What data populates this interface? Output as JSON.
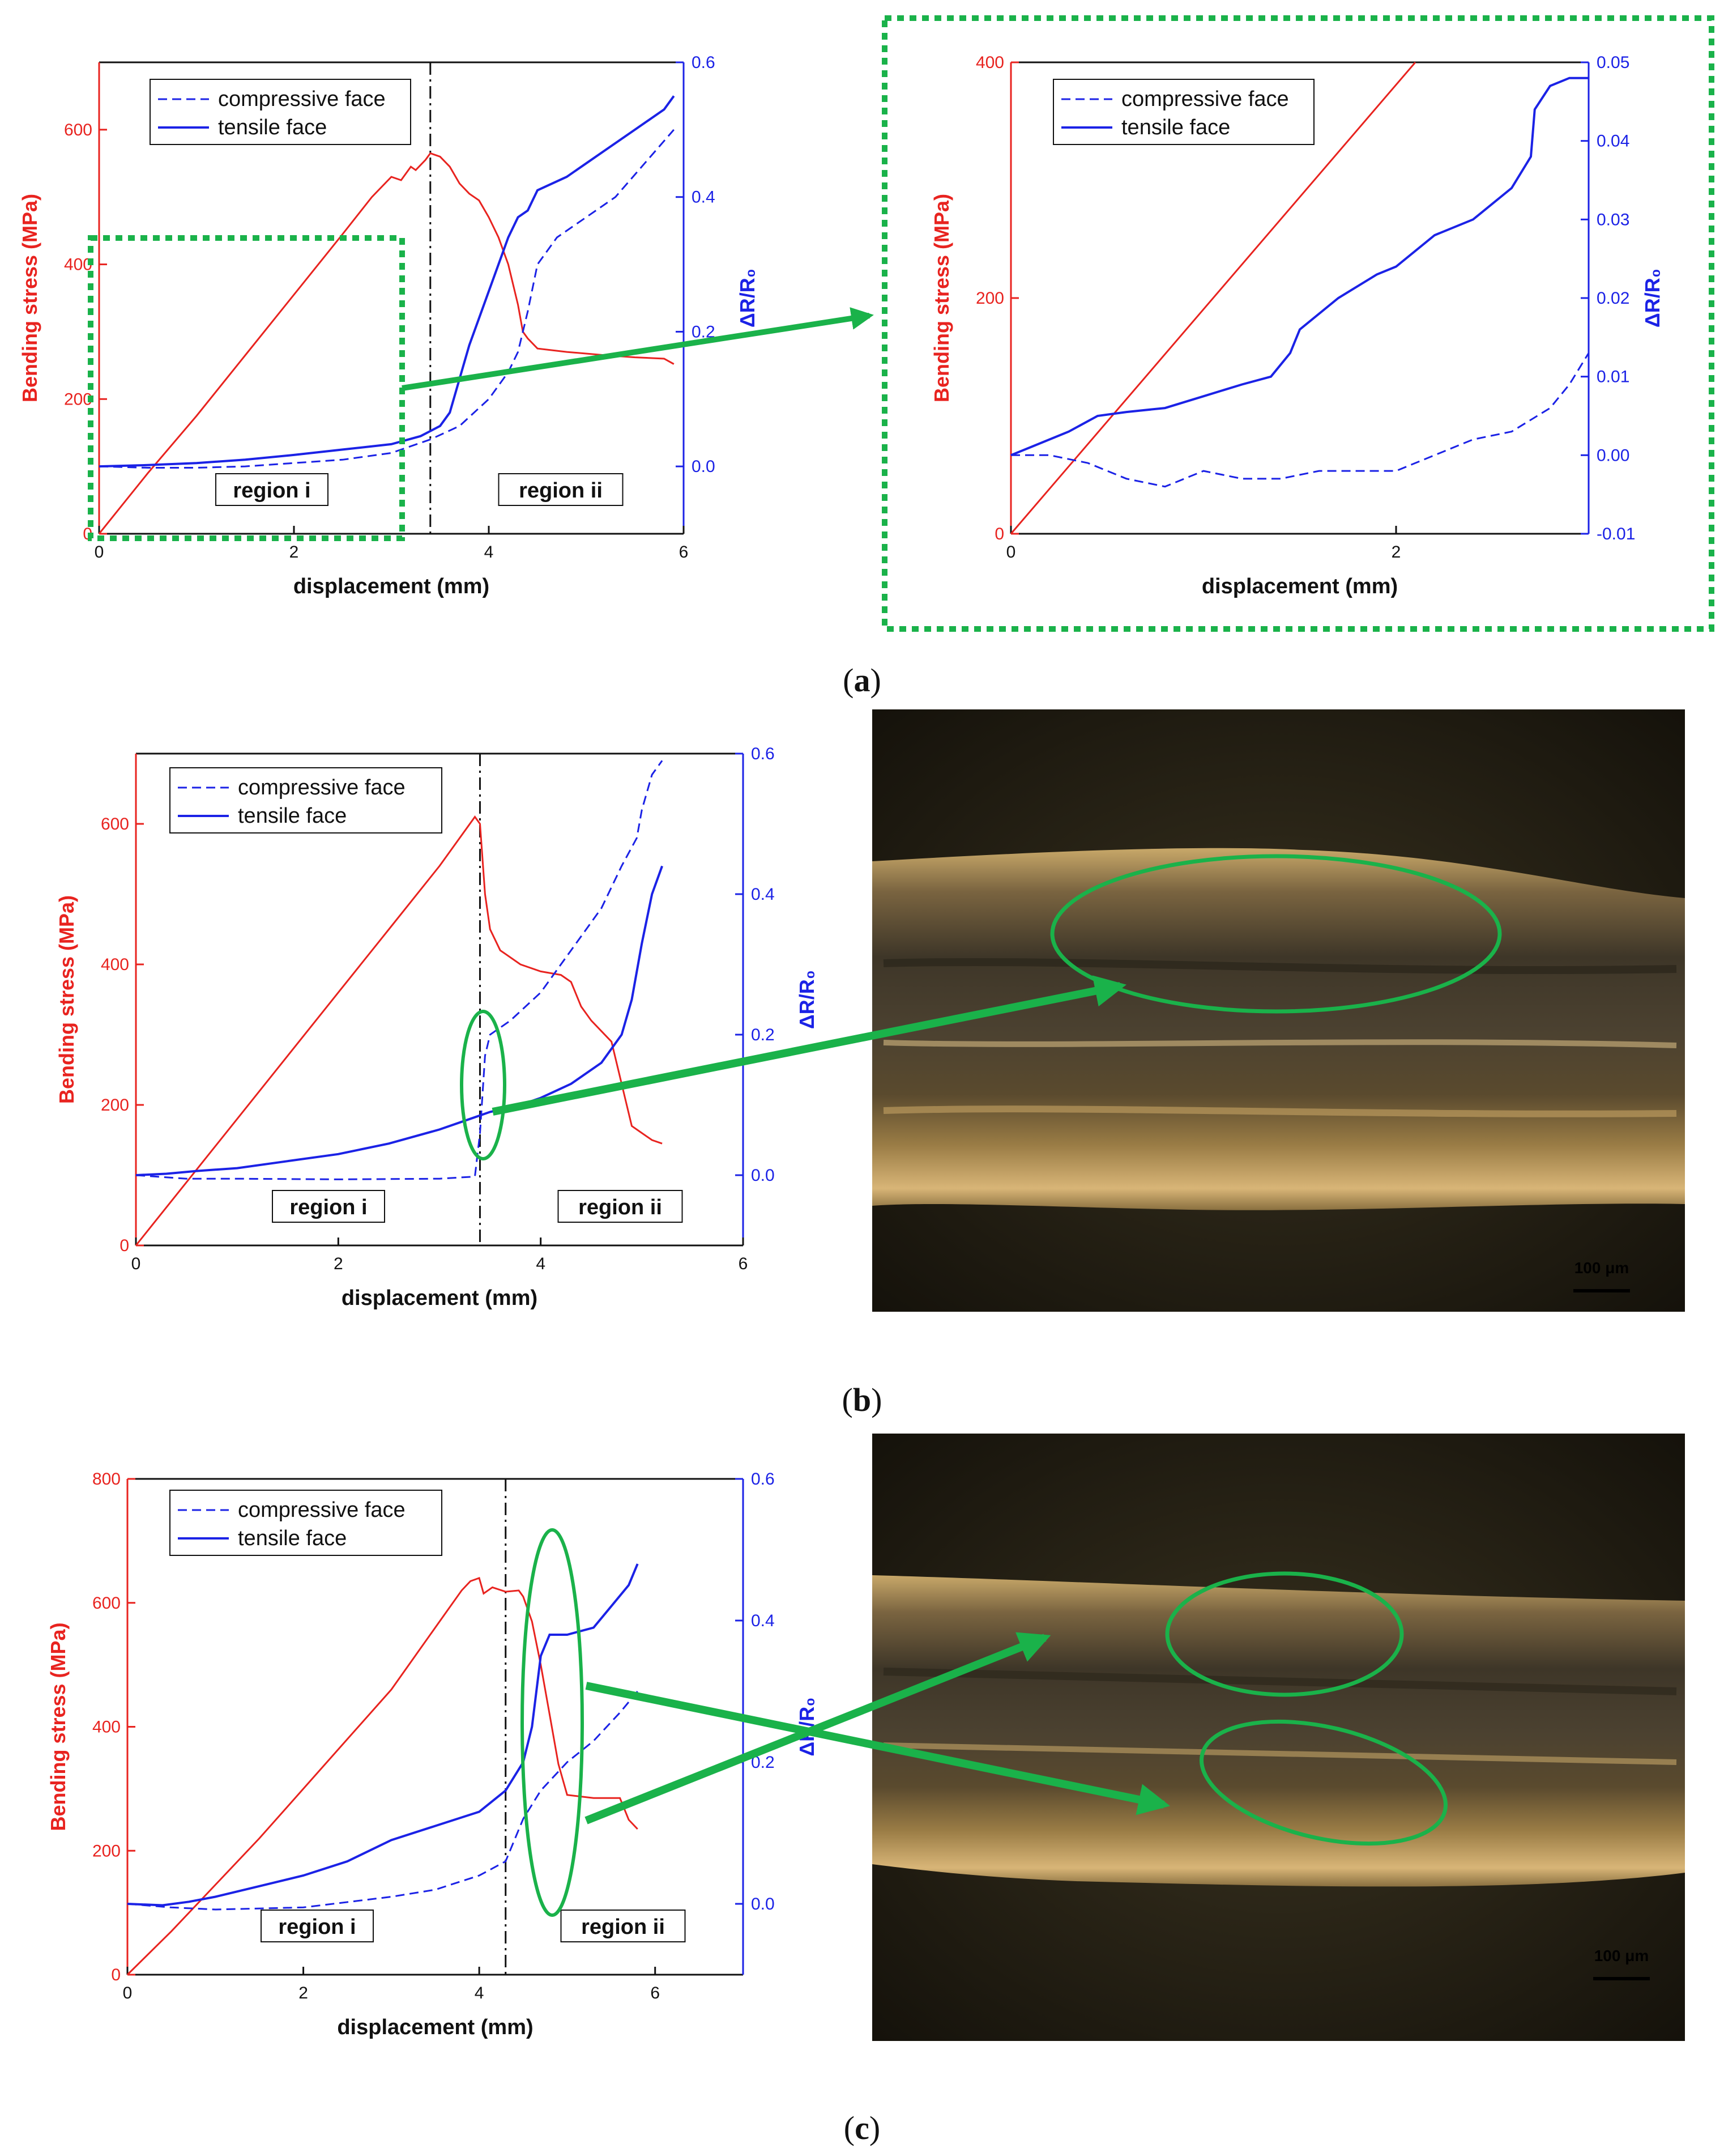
{
  "colors": {
    "stress": "#e8231f",
    "resistance": "#1b22e6",
    "highlight": "#1ab24a",
    "axis": "#111111"
  },
  "panels": [
    {
      "caption_prefix": "(",
      "caption_letter": "a",
      "caption_suffix": ")"
    },
    {
      "caption_prefix": "(",
      "caption_letter": "b",
      "caption_suffix": ")"
    },
    {
      "caption_prefix": "(",
      "caption_letter": "c",
      "caption_suffix": ")"
    }
  ],
  "micrographs": [
    {
      "scale_label": "100 μm"
    },
    {
      "scale_label": "100 μm"
    }
  ],
  "chart_data": [
    {
      "id": "a-main",
      "type": "line",
      "xlabel": "displacement (mm)",
      "ylabel_left": "Bending stress (MPa)",
      "ylabel_right": "ΔR/R₀",
      "xlim": [
        0,
        6
      ],
      "xticks": [
        0,
        2,
        4,
        6
      ],
      "ylim_left": [
        0,
        700
      ],
      "yticks_left": [
        0,
        200,
        400,
        600
      ],
      "ylim_right": [
        -0.1,
        0.6
      ],
      "yticks_right": [
        "0.0",
        "0.2",
        "0.4",
        "0.6"
      ],
      "yticks_right_values": [
        0,
        0.2,
        0.4,
        0.6
      ],
      "legend": {
        "position": "top-left",
        "entries": [
          "compressive face",
          "tensile face"
        ]
      },
      "regions": [
        "region i",
        "region ii"
      ],
      "divider_x": 3.4,
      "stress": [
        [
          0,
          0
        ],
        [
          0.5,
          90
        ],
        [
          1,
          175
        ],
        [
          1.5,
          265
        ],
        [
          2,
          355
        ],
        [
          2.5,
          445
        ],
        [
          2.8,
          500
        ],
        [
          3.0,
          530
        ],
        [
          3.1,
          525
        ],
        [
          3.2,
          545
        ],
        [
          3.25,
          540
        ],
        [
          3.35,
          555
        ],
        [
          3.4,
          565
        ],
        [
          3.5,
          560
        ],
        [
          3.6,
          545
        ],
        [
          3.7,
          520
        ],
        [
          3.8,
          505
        ],
        [
          3.9,
          495
        ],
        [
          4.0,
          470
        ],
        [
          4.1,
          440
        ],
        [
          4.2,
          400
        ],
        [
          4.3,
          340
        ],
        [
          4.35,
          300
        ],
        [
          4.4,
          290
        ],
        [
          4.5,
          275
        ],
        [
          4.8,
          270
        ],
        [
          5.2,
          265
        ],
        [
          5.5,
          262
        ],
        [
          5.8,
          260
        ],
        [
          5.9,
          252
        ]
      ],
      "tensile": [
        [
          0,
          0
        ],
        [
          0.5,
          0.002
        ],
        [
          1,
          0.005
        ],
        [
          1.5,
          0.01
        ],
        [
          2,
          0.017
        ],
        [
          2.5,
          0.025
        ],
        [
          3,
          0.033
        ],
        [
          3.3,
          0.045
        ],
        [
          3.5,
          0.06
        ],
        [
          3.6,
          0.08
        ],
        [
          3.7,
          0.13
        ],
        [
          3.8,
          0.18
        ],
        [
          3.9,
          0.22
        ],
        [
          4.0,
          0.26
        ],
        [
          4.1,
          0.3
        ],
        [
          4.2,
          0.34
        ],
        [
          4.3,
          0.37
        ],
        [
          4.4,
          0.38
        ],
        [
          4.5,
          0.41
        ],
        [
          4.8,
          0.43
        ],
        [
          5.0,
          0.45
        ],
        [
          5.2,
          0.47
        ],
        [
          5.5,
          0.5
        ],
        [
          5.8,
          0.53
        ],
        [
          5.9,
          0.55
        ]
      ],
      "compressive": [
        [
          0,
          0
        ],
        [
          0.5,
          -0.002
        ],
        [
          1,
          -0.002
        ],
        [
          1.5,
          0
        ],
        [
          2,
          0.005
        ],
        [
          2.5,
          0.01
        ],
        [
          3,
          0.02
        ],
        [
          3.4,
          0.04
        ],
        [
          3.7,
          0.06
        ],
        [
          4.0,
          0.1
        ],
        [
          4.2,
          0.14
        ],
        [
          4.3,
          0.17
        ],
        [
          4.4,
          0.23
        ],
        [
          4.5,
          0.3
        ],
        [
          4.7,
          0.34
        ],
        [
          5.0,
          0.37
        ],
        [
          5.3,
          0.4
        ],
        [
          5.6,
          0.45
        ],
        [
          5.9,
          0.5
        ]
      ]
    },
    {
      "id": "a-zoom",
      "type": "line",
      "xlabel": "displacement (mm)",
      "ylabel_left": "Bending stress (MPa)",
      "ylabel_right": "ΔR/R₀",
      "xlim": [
        0,
        3
      ],
      "xticks": [
        0,
        2
      ],
      "ylim_left": [
        0,
        400
      ],
      "yticks_left": [
        0,
        200,
        400
      ],
      "ylim_right": [
        -0.01,
        0.05
      ],
      "yticks_right": [
        "-0.01",
        "0.00",
        "0.01",
        "0.02",
        "0.03",
        "0.04",
        "0.05"
      ],
      "yticks_right_values": [
        -0.01,
        0,
        0.01,
        0.02,
        0.03,
        0.04,
        0.05
      ],
      "legend": {
        "position": "top-left",
        "entries": [
          "compressive face",
          "tensile face"
        ]
      },
      "stress": [
        [
          0,
          0
        ],
        [
          2.1,
          400
        ]
      ],
      "tensile": [
        [
          0,
          0
        ],
        [
          0.1,
          0.001
        ],
        [
          0.3,
          0.003
        ],
        [
          0.45,
          0.005
        ],
        [
          0.6,
          0.0055
        ],
        [
          0.8,
          0.006
        ],
        [
          1.0,
          0.0075
        ],
        [
          1.2,
          0.009
        ],
        [
          1.35,
          0.01
        ],
        [
          1.45,
          0.013
        ],
        [
          1.5,
          0.016
        ],
        [
          1.7,
          0.02
        ],
        [
          1.9,
          0.023
        ],
        [
          2.0,
          0.024
        ],
        [
          2.2,
          0.028
        ],
        [
          2.4,
          0.03
        ],
        [
          2.6,
          0.034
        ],
        [
          2.7,
          0.038
        ],
        [
          2.72,
          0.044
        ],
        [
          2.8,
          0.047
        ],
        [
          2.9,
          0.048
        ],
        [
          3.0,
          0.048
        ]
      ],
      "compressive": [
        [
          0,
          0
        ],
        [
          0.2,
          0
        ],
        [
          0.4,
          -0.001
        ],
        [
          0.6,
          -0.003
        ],
        [
          0.8,
          -0.004
        ],
        [
          1.0,
          -0.002
        ],
        [
          1.2,
          -0.003
        ],
        [
          1.4,
          -0.003
        ],
        [
          1.6,
          -0.002
        ],
        [
          1.8,
          -0.002
        ],
        [
          2.0,
          -0.002
        ],
        [
          2.2,
          0
        ],
        [
          2.4,
          0.002
        ],
        [
          2.6,
          0.003
        ],
        [
          2.8,
          0.006
        ],
        [
          2.9,
          0.009
        ],
        [
          3.0,
          0.013
        ]
      ]
    },
    {
      "id": "b",
      "type": "line",
      "xlabel": "displacement (mm)",
      "ylabel_left": "Bending stress (MPa)",
      "ylabel_right": "ΔR/R₀",
      "xlim": [
        0,
        6
      ],
      "xticks": [
        0,
        2,
        4,
        6
      ],
      "ylim_left": [
        0,
        700
      ],
      "yticks_left": [
        0,
        200,
        400,
        600
      ],
      "ylim_right": [
        -0.1,
        0.6
      ],
      "yticks_right": [
        "0.0",
        "0.2",
        "0.4",
        "0.6"
      ],
      "yticks_right_values": [
        0,
        0.2,
        0.4,
        0.6
      ],
      "legend": {
        "position": "top-left",
        "entries": [
          "compressive face",
          "tensile face"
        ]
      },
      "regions": [
        "region i",
        "region ii"
      ],
      "divider_x": 3.4,
      "stress": [
        [
          0,
          0
        ],
        [
          0.5,
          90
        ],
        [
          1,
          180
        ],
        [
          1.5,
          270
        ],
        [
          2,
          360
        ],
        [
          2.5,
          450
        ],
        [
          3.0,
          540
        ],
        [
          3.35,
          610
        ],
        [
          3.4,
          600
        ],
        [
          3.45,
          500
        ],
        [
          3.5,
          450
        ],
        [
          3.6,
          420
        ],
        [
          3.8,
          400
        ],
        [
          4.0,
          390
        ],
        [
          4.2,
          385
        ],
        [
          4.3,
          375
        ],
        [
          4.4,
          340
        ],
        [
          4.5,
          320
        ],
        [
          4.7,
          290
        ],
        [
          4.8,
          230
        ],
        [
          4.9,
          170
        ],
        [
          5.0,
          160
        ],
        [
          5.1,
          150
        ],
        [
          5.2,
          145
        ]
      ],
      "tensile": [
        [
          0,
          0
        ],
        [
          0.3,
          0.002
        ],
        [
          0.6,
          0.006
        ],
        [
          1,
          0.01
        ],
        [
          1.5,
          0.02
        ],
        [
          2,
          0.03
        ],
        [
          2.5,
          0.045
        ],
        [
          3.0,
          0.065
        ],
        [
          3.3,
          0.08
        ],
        [
          3.5,
          0.09
        ],
        [
          3.8,
          0.1
        ],
        [
          4.0,
          0.11
        ],
        [
          4.3,
          0.13
        ],
        [
          4.6,
          0.16
        ],
        [
          4.8,
          0.2
        ],
        [
          4.9,
          0.25
        ],
        [
          5.0,
          0.33
        ],
        [
          5.1,
          0.4
        ],
        [
          5.2,
          0.44
        ]
      ],
      "compressive": [
        [
          0,
          0
        ],
        [
          0.5,
          -0.005
        ],
        [
          1,
          -0.005
        ],
        [
          2,
          -0.006
        ],
        [
          3,
          -0.005
        ],
        [
          3.35,
          -0.002
        ],
        [
          3.4,
          0.06
        ],
        [
          3.45,
          0.17
        ],
        [
          3.5,
          0.2
        ],
        [
          3.7,
          0.22
        ],
        [
          4.0,
          0.26
        ],
        [
          4.3,
          0.32
        ],
        [
          4.6,
          0.38
        ],
        [
          4.8,
          0.44
        ],
        [
          4.95,
          0.48
        ],
        [
          5.0,
          0.52
        ],
        [
          5.1,
          0.57
        ],
        [
          5.2,
          0.59
        ]
      ]
    },
    {
      "id": "c",
      "type": "line",
      "xlabel": "displacement (mm)",
      "ylabel_left": "Bending stress (MPa)",
      "ylabel_right": "ΔR/R₀",
      "xlim": [
        0,
        7
      ],
      "xticks": [
        0,
        2,
        4,
        6
      ],
      "ylim_left": [
        0,
        800
      ],
      "yticks_left": [
        0,
        200,
        400,
        600,
        800
      ],
      "ylim_right": [
        -0.1,
        0.6
      ],
      "yticks_right": [
        "0.0",
        "0.2",
        "0.4",
        "0.6"
      ],
      "yticks_right_values": [
        0,
        0.2,
        0.4,
        0.6
      ],
      "legend": {
        "position": "top-left",
        "entries": [
          "compressive face",
          "tensile face"
        ]
      },
      "regions": [
        "region i",
        "region ii"
      ],
      "divider_x": 4.3,
      "stress": [
        [
          0,
          0
        ],
        [
          0.5,
          70
        ],
        [
          1,
          145
        ],
        [
          1.5,
          220
        ],
        [
          2,
          300
        ],
        [
          2.5,
          380
        ],
        [
          3,
          460
        ],
        [
          3.3,
          520
        ],
        [
          3.6,
          580
        ],
        [
          3.8,
          620
        ],
        [
          3.9,
          635
        ],
        [
          4.0,
          640
        ],
        [
          4.05,
          615
        ],
        [
          4.15,
          625
        ],
        [
          4.3,
          618
        ],
        [
          4.45,
          620
        ],
        [
          4.5,
          610
        ],
        [
          4.6,
          570
        ],
        [
          4.7,
          500
        ],
        [
          4.8,
          420
        ],
        [
          4.9,
          340
        ],
        [
          5.0,
          290
        ],
        [
          5.3,
          285
        ],
        [
          5.6,
          285
        ],
        [
          5.7,
          250
        ],
        [
          5.8,
          235
        ]
      ],
      "tensile": [
        [
          0,
          0
        ],
        [
          0.4,
          -0.002
        ],
        [
          0.7,
          0.003
        ],
        [
          1,
          0.01
        ],
        [
          1.5,
          0.025
        ],
        [
          2,
          0.04
        ],
        [
          2.5,
          0.06
        ],
        [
          3,
          0.09
        ],
        [
          3.5,
          0.11
        ],
        [
          4,
          0.13
        ],
        [
          4.3,
          0.16
        ],
        [
          4.5,
          0.2
        ],
        [
          4.6,
          0.25
        ],
        [
          4.7,
          0.35
        ],
        [
          4.8,
          0.38
        ],
        [
          5.0,
          0.38
        ],
        [
          5.3,
          0.39
        ],
        [
          5.5,
          0.42
        ],
        [
          5.7,
          0.45
        ],
        [
          5.8,
          0.48
        ]
      ],
      "compressive": [
        [
          0,
          0
        ],
        [
          0.5,
          -0.005
        ],
        [
          1,
          -0.008
        ],
        [
          2,
          -0.005
        ],
        [
          3,
          0.01
        ],
        [
          3.5,
          0.02
        ],
        [
          4,
          0.04
        ],
        [
          4.3,
          0.06
        ],
        [
          4.5,
          0.12
        ],
        [
          4.7,
          0.16
        ],
        [
          5.0,
          0.2
        ],
        [
          5.3,
          0.23
        ],
        [
          5.6,
          0.27
        ],
        [
          5.8,
          0.3
        ]
      ]
    }
  ]
}
